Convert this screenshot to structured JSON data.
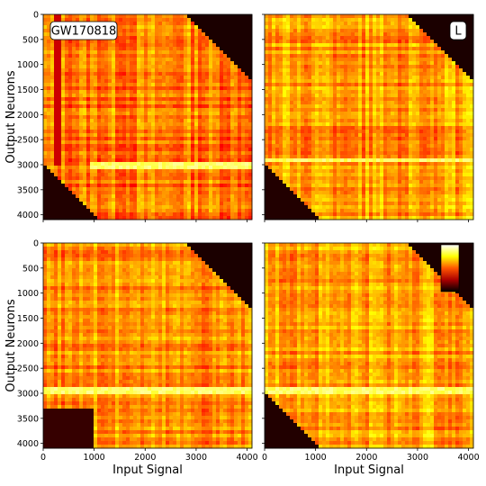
{
  "chart_data": {
    "type": "heatmap",
    "layout": "2x2 grid, shared axes",
    "x_ticks": [
      0,
      1000,
      2000,
      3000,
      4000
    ],
    "y_ticks": [
      0,
      500,
      1000,
      1500,
      2000,
      2500,
      3000,
      3500,
      4000
    ],
    "xlim": [
      0,
      4096
    ],
    "ylim": [
      4096,
      0
    ],
    "xlabel": "Input Signal",
    "ylabel": "Output Neurons",
    "colormap": "hot",
    "colors": {
      "low": "#000000",
      "mid": "#e02000",
      "high": "#ffff80"
    },
    "panels": [
      {
        "position": "top-left",
        "badge": "GW170818",
        "badge_position": "top-left",
        "features": {
          "bright_row": 3000,
          "bright_row_x_range": [
            900,
            4096
          ],
          "dark_vertical_line_x": 280,
          "dark_corner_top_right": true,
          "dark_corner_bottom_left": true
        },
        "base_intensity": 0.55
      },
      {
        "position": "top-right",
        "badge": "L",
        "badge_position": "top-right",
        "features": {
          "bright_row": 2900,
          "bright_row_x_range": [
            0,
            4096
          ],
          "dark_corner_top_right": true,
          "dark_corner_bottom_left": true
        },
        "base_intensity": 0.6
      },
      {
        "position": "bottom-left",
        "badge": "",
        "features": {
          "bright_row": 2930,
          "bright_row_x_range": [
            0,
            4096
          ],
          "dark_corner_top_right": true,
          "dark_block_bottom_left": [
            0,
            1000,
            3300,
            4096
          ]
        },
        "base_intensity": 0.58
      },
      {
        "position": "bottom-right",
        "badge": "",
        "colorbar": true,
        "colorbar_position": "top-right",
        "features": {
          "bright_row": 2930,
          "bright_row_x_range": [
            0,
            4096
          ],
          "dark_corner_top_right": true,
          "dark_corner_bottom_left": true
        },
        "base_intensity": 0.62
      }
    ]
  }
}
